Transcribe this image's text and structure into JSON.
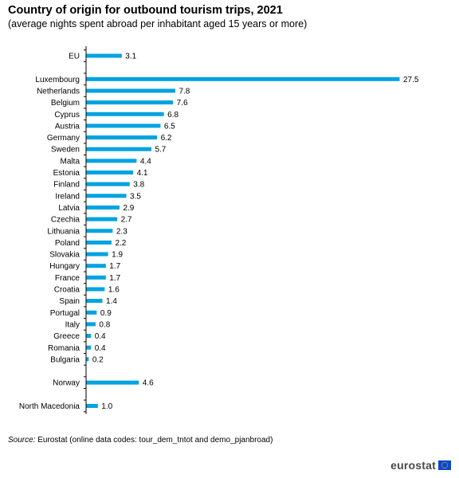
{
  "chart_data": {
    "type": "bar",
    "orientation": "horizontal",
    "title": "Country of origin for outbound tourism trips, 2021",
    "subtitle": "(average nights spent abroad per inhabitant aged 15 years or more)",
    "categories": [
      "EU",
      "Luxembourg",
      "Netherlands",
      "Belgium",
      "Cyprus",
      "Austria",
      "Germany",
      "Sweden",
      "Malta",
      "Estonia",
      "Finland",
      "Ireland",
      "Latvia",
      "Czechia",
      "Lithuania",
      "Poland",
      "Slovakia",
      "Hungary",
      "France",
      "Croatia",
      "Spain",
      "Portugal",
      "Italy",
      "Greece",
      "Romania",
      "Bulgaria",
      "Norway",
      "North Macedonia"
    ],
    "values": [
      3.1,
      27.5,
      7.8,
      7.6,
      6.8,
      6.5,
      6.2,
      5.7,
      4.4,
      4.1,
      3.8,
      3.5,
      2.9,
      2.7,
      2.3,
      2.2,
      1.9,
      1.7,
      1.7,
      1.6,
      1.4,
      0.9,
      0.8,
      0.4,
      0.4,
      0.2,
      4.6,
      1.0
    ],
    "value_labels": [
      "3.1",
      "27.5",
      "7.8",
      "7.6",
      "6.8",
      "6.5",
      "6.2",
      "5.7",
      "4.4",
      "4.1",
      "3.8",
      "3.5",
      "2.9",
      "2.7",
      "2.3",
      "2.2",
      "1.9",
      "1.7",
      "1.7",
      "1.6",
      "1.4",
      "0.9",
      "0.8",
      "0.4",
      "0.4",
      "0.2",
      "4.6",
      "1.0"
    ],
    "groups": [
      [
        0,
        0
      ],
      [
        1,
        25
      ],
      [
        26,
        26
      ],
      [
        27,
        27
      ]
    ],
    "xlim": [
      0,
      27.5
    ],
    "grid": false,
    "bar_color": "#00a3e0"
  },
  "source": {
    "label": "Source:",
    "text": " Eurostat (online data codes: tour_dem_tntot and demo_pjanbroad)"
  },
  "logo": {
    "text": "eurostat",
    "flag_color": "#0e47cb",
    "star_color": "#ffd617"
  }
}
